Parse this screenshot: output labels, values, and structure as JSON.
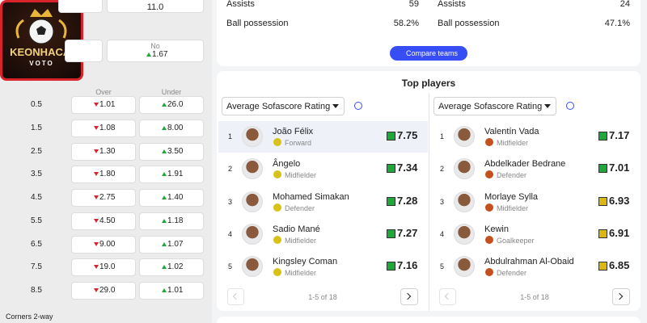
{
  "logo": {
    "brand": "KEONHACAI",
    "sub": "VOTO"
  },
  "odds": {
    "top_value": "11.0",
    "no_label": "No",
    "no_value": "1.67",
    "no_trend": "up",
    "headers": [
      "Over",
      "Under"
    ],
    "rows": [
      {
        "line": "0.5",
        "over": "1.01",
        "over_trend": "down",
        "under": "26.0",
        "under_trend": "up"
      },
      {
        "line": "1.5",
        "over": "1.08",
        "over_trend": "down",
        "under": "8.00",
        "under_trend": "up"
      },
      {
        "line": "2.5",
        "over": "1.30",
        "over_trend": "down",
        "under": "3.50",
        "under_trend": "up"
      },
      {
        "line": "3.5",
        "over": "1.80",
        "over_trend": "down",
        "under": "1.91",
        "under_trend": "up"
      },
      {
        "line": "4.5",
        "over": "2.75",
        "over_trend": "down",
        "under": "1.40",
        "under_trend": "up"
      },
      {
        "line": "5.5",
        "over": "4.50",
        "over_trend": "down",
        "under": "1.18",
        "under_trend": "up"
      },
      {
        "line": "6.5",
        "over": "9.00",
        "over_trend": "down",
        "under": "1.07",
        "under_trend": "up"
      },
      {
        "line": "7.5",
        "over": "19.0",
        "over_trend": "down",
        "under": "1.02",
        "under_trend": "up"
      },
      {
        "line": "8.5",
        "over": "29.0",
        "over_trend": "down",
        "under": "1.01",
        "under_trend": "up"
      }
    ],
    "footer": "Corners 2-way"
  },
  "stats": [
    {
      "rows": [
        {
          "label": "Assists",
          "value": "59"
        },
        {
          "label": "Ball possession",
          "value": "58.2%"
        }
      ]
    },
    {
      "rows": [
        {
          "label": "Assists",
          "value": "24"
        },
        {
          "label": "Ball possession",
          "value": "47.1%"
        }
      ]
    }
  ],
  "compare_button": "Compare teams",
  "top_players": {
    "title": "Top players",
    "panels": [
      {
        "dropdown": "Average Sofascore Rating",
        "pagination": "1-5 of 18",
        "team_color": "#d8c21a",
        "players": [
          {
            "rank": "1",
            "name": "João Félix",
            "position": "Forward",
            "rating": "7.75",
            "rating_color": "#1fa83a"
          },
          {
            "rank": "2",
            "name": "Ângelo",
            "position": "Midfielder",
            "rating": "7.34",
            "rating_color": "#1fa83a"
          },
          {
            "rank": "3",
            "name": "Mohamed Simakan",
            "position": "Defender",
            "rating": "7.28",
            "rating_color": "#1fa83a"
          },
          {
            "rank": "4",
            "name": "Sadio Mané",
            "position": "Midfielder",
            "rating": "7.27",
            "rating_color": "#1fa83a"
          },
          {
            "rank": "5",
            "name": "Kingsley Coman",
            "position": "Midfielder",
            "rating": "7.16",
            "rating_color": "#1fa83a"
          }
        ]
      },
      {
        "dropdown": "Average Sofascore Rating",
        "pagination": "1-5 of 18",
        "team_color": "#c4501e",
        "players": [
          {
            "rank": "1",
            "name": "Valentín Vada",
            "position": "Midfielder",
            "rating": "7.17",
            "rating_color": "#1fa83a"
          },
          {
            "rank": "2",
            "name": "Abdelkader Bedrane",
            "position": "Defender",
            "rating": "7.01",
            "rating_color": "#1fa83a"
          },
          {
            "rank": "3",
            "name": "Morlaye Sylla",
            "position": "Midfielder",
            "rating": "6.93",
            "rating_color": "#d9b815"
          },
          {
            "rank": "4",
            "name": "Kewin",
            "position": "Goalkeeper",
            "rating": "6.91",
            "rating_color": "#d9b815"
          },
          {
            "rank": "5",
            "name": "Abdulrahman Al-Obaid",
            "position": "Defender",
            "rating": "6.85",
            "rating_color": "#d9b815"
          }
        ]
      }
    ]
  }
}
